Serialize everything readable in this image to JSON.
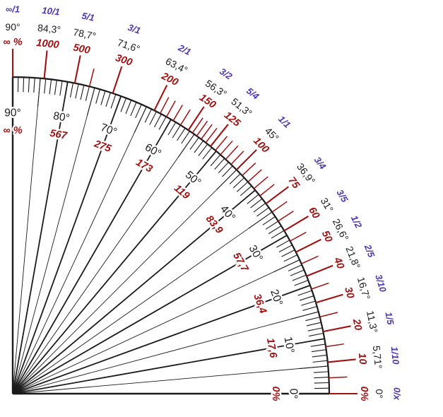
{
  "diagram": {
    "name": "slope-ratio-angle-percent-protractor",
    "colors": {
      "background": "#ffffff",
      "ratio_label": "#5036b2",
      "degree_label": "#1b1b1b",
      "percent_label": "#a01212",
      "red_tick": "#a01212",
      "black_line": "#1b1b1b"
    },
    "outer_scale": [
      {
        "ratio": "∞/1",
        "degree": "90°",
        "percent": "∞ %",
        "angle": 90
      },
      {
        "ratio": "10/1",
        "degree": "84,3°",
        "percent": "1000",
        "angle": 84.289
      },
      {
        "ratio": "5/1",
        "degree": "78,7°",
        "percent": "500",
        "angle": 78.69
      },
      {
        "ratio": "3/1",
        "degree": "71,6°",
        "percent": "300",
        "angle": 71.565
      },
      {
        "ratio": "2/1",
        "degree": "63,4°",
        "percent": "200",
        "angle": 63.435
      },
      {
        "ratio": "3/2",
        "degree": "56,3°",
        "percent": "150",
        "angle": 56.31
      },
      {
        "ratio": "5/4",
        "degree": "51,3°",
        "percent": "125",
        "angle": 51.34
      },
      {
        "ratio": "1/1",
        "degree": "45°",
        "percent": "100",
        "angle": 45
      },
      {
        "ratio": "3/4",
        "degree": "36,9°",
        "percent": "75",
        "angle": 36.87
      },
      {
        "ratio": "3/5",
        "degree": "31°",
        "percent": "60",
        "angle": 30.964
      },
      {
        "ratio": "1/2",
        "degree": "26,6°",
        "percent": "50",
        "angle": 26.565
      },
      {
        "ratio": "2/5",
        "degree": "21,8°",
        "percent": "40",
        "angle": 21.801
      },
      {
        "ratio": "3/10",
        "degree": "16,7°",
        "percent": "30",
        "angle": 16.699
      },
      {
        "ratio": "1/5",
        "degree": "11,3°",
        "percent": "20",
        "angle": 11.31
      },
      {
        "ratio": "1/10",
        "degree": "5,71°",
        "percent": "10",
        "angle": 5.711
      },
      {
        "ratio": "0/x",
        "degree": "0°",
        "percent": "0%",
        "angle": 0
      }
    ],
    "inner_scale": [
      {
        "degree": "90°",
        "percent": "∞ %",
        "angle": 90
      },
      {
        "degree": "80°",
        "percent": "567",
        "angle": 80
      },
      {
        "degree": "70°",
        "percent": "275",
        "angle": 70
      },
      {
        "degree": "60°",
        "percent": "173",
        "angle": 60
      },
      {
        "degree": "50°",
        "percent": "119",
        "angle": 50
      },
      {
        "degree": "40°",
        "percent": "83,9",
        "angle": 40
      },
      {
        "degree": "30°",
        "percent": "57,7",
        "angle": 30
      },
      {
        "degree": "20°",
        "percent": "36,4",
        "angle": 20
      },
      {
        "degree": "10°",
        "percent": "17,6",
        "angle": 10
      },
      {
        "degree": "0°",
        "percent": "0%",
        "angle": 0
      }
    ],
    "minor_red_tick_percents": [
      5,
      15,
      25,
      35,
      45,
      55,
      65,
      70,
      80,
      85,
      90,
      95,
      105,
      110,
      115,
      120,
      130,
      135,
      140,
      145,
      160,
      170,
      180,
      190,
      400
    ]
  }
}
